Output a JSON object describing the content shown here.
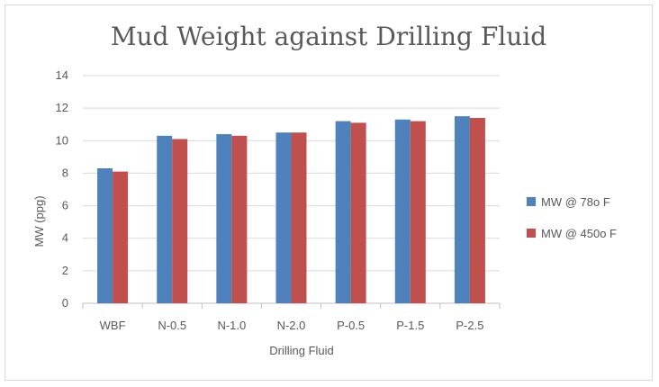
{
  "chart_data": {
    "type": "bar",
    "title": "Mud Weight against Drilling Fluid",
    "xlabel": "Drilling Fluid",
    "ylabel": "MW (ppg)",
    "categories": [
      "WBF",
      "N-0.5",
      "N-1.0",
      "N-2.0",
      "P-0.5",
      "P-1.5",
      "P-2.5"
    ],
    "ylim": [
      0,
      14
    ],
    "yticks": [
      0,
      2,
      4,
      6,
      8,
      10,
      12,
      14
    ],
    "grid": true,
    "legend_position": "right",
    "series": [
      {
        "name": "MW @ 78o F",
        "color": "#4f81bd",
        "values": [
          8.3,
          10.3,
          10.4,
          10.5,
          11.2,
          11.3,
          11.5
        ]
      },
      {
        "name": "MW @ 450o F",
        "color": "#c0504d",
        "values": [
          8.1,
          10.1,
          10.3,
          10.5,
          11.1,
          11.2,
          11.4
        ]
      }
    ]
  }
}
